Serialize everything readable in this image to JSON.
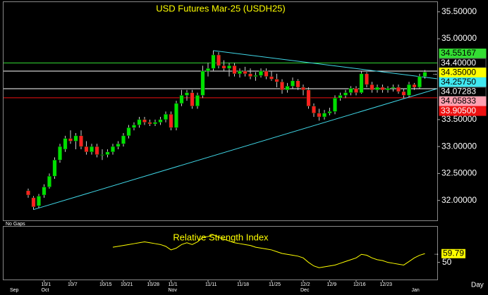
{
  "chart_data": [
    {
      "type": "candlestick",
      "title": "USD Futures Mar-25 (USDH25)",
      "gap_mode": "No Gaps",
      "period": "Day",
      "categories": [
        null,
        null,
        null,
        "10/1",
        null,
        null,
        null,
        null,
        "10/7",
        null,
        null,
        null,
        null,
        null,
        "10/15",
        null,
        null,
        null,
        "10/21",
        null,
        null,
        null,
        null,
        "10/28",
        null,
        null,
        null,
        "11/1",
        null,
        null,
        null,
        null,
        null,
        null,
        "11/11",
        null,
        null,
        null,
        null,
        null,
        "11/18",
        null,
        null,
        null,
        null,
        null,
        "11/25",
        null,
        null,
        null,
        null,
        null,
        "12/2",
        null,
        null,
        null,
        null,
        "12/9",
        null,
        null,
        null,
        null,
        "12/16",
        null,
        null,
        null,
        null,
        "12/23",
        null,
        null,
        null,
        null,
        null,
        null,
        null,
        null
      ],
      "months": [
        "Sep",
        null,
        null,
        "Oct",
        null,
        null,
        null,
        null,
        null,
        null,
        null,
        null,
        null,
        null,
        null,
        null,
        null,
        null,
        null,
        null,
        null,
        null,
        null,
        null,
        null,
        null,
        null,
        "Nov",
        null,
        null,
        null,
        null,
        null,
        null,
        null,
        null,
        null,
        null,
        null,
        null,
        null,
        null,
        null,
        null,
        null,
        null,
        null,
        null,
        null,
        null,
        null,
        null,
        "Dec",
        null,
        null,
        null,
        null,
        null,
        null,
        null,
        null,
        null,
        null,
        null,
        null,
        null,
        null,
        null,
        null,
        null,
        null,
        null,
        null,
        "Jan",
        null,
        null
      ],
      "open": [
        32.18,
        32.05,
        31.9,
        32.1,
        32.25,
        32.45,
        32.75,
        32.95,
        33.15,
        33.1,
        33.2,
        33.0,
        32.9,
        33.0,
        32.85,
        32.85,
        32.9,
        33.0,
        33.05,
        33.2,
        33.35,
        33.4,
        33.5,
        33.45,
        33.42,
        33.45,
        33.5,
        33.6,
        33.35,
        33.8,
        33.95,
        34.0,
        33.75,
        33.95,
        34.4,
        34.45,
        34.7,
        34.5,
        34.45,
        34.5,
        34.35,
        34.4,
        34.35,
        34.3,
        34.32,
        34.4,
        34.3,
        34.25,
        34.2,
        34.05,
        34.12,
        34.22,
        34.1,
        34.05,
        33.75,
        33.62,
        33.55,
        33.62,
        33.65,
        33.9,
        33.95,
        34.0,
        34.08,
        34.0,
        34.35,
        34.15,
        34.05,
        34.1,
        34.05,
        34.08,
        34.1,
        34.02,
        33.95,
        34.15,
        34.1,
        34.3
      ],
      "high": [
        32.22,
        32.08,
        32.12,
        32.3,
        32.5,
        32.8,
        33.05,
        33.2,
        33.3,
        33.25,
        33.3,
        33.1,
        33.05,
        33.05,
        32.95,
        32.95,
        33.05,
        33.1,
        33.25,
        33.4,
        33.45,
        33.55,
        33.55,
        33.5,
        33.5,
        33.55,
        33.65,
        33.65,
        33.85,
        34.05,
        34.05,
        34.05,
        34.0,
        34.5,
        34.55,
        34.78,
        34.75,
        34.6,
        34.55,
        34.55,
        34.45,
        34.48,
        34.45,
        34.38,
        34.45,
        34.45,
        34.4,
        34.35,
        34.25,
        34.18,
        34.28,
        34.25,
        34.15,
        34.1,
        33.8,
        33.7,
        33.68,
        33.72,
        33.95,
        34.0,
        34.05,
        34.12,
        34.12,
        34.4,
        34.38,
        34.2,
        34.15,
        34.15,
        34.12,
        34.15,
        34.15,
        34.08,
        34.2,
        34.18,
        34.35,
        34.42
      ],
      "low": [
        32.05,
        31.83,
        31.86,
        32.05,
        32.22,
        32.4,
        32.7,
        32.9,
        33.05,
        32.95,
        32.95,
        32.85,
        32.85,
        32.8,
        32.75,
        32.8,
        32.85,
        32.95,
        33.0,
        33.15,
        33.3,
        33.35,
        33.4,
        33.38,
        33.38,
        33.4,
        33.45,
        33.3,
        33.3,
        33.75,
        33.85,
        33.7,
        33.7,
        33.9,
        34.3,
        34.4,
        34.45,
        34.4,
        34.3,
        34.3,
        34.28,
        34.3,
        34.25,
        34.22,
        34.28,
        34.25,
        34.22,
        34.1,
        33.98,
        34.0,
        34.08,
        34.05,
        33.95,
        33.7,
        33.55,
        33.48,
        33.5,
        33.58,
        33.6,
        33.85,
        33.9,
        33.95,
        33.95,
        33.98,
        34.1,
        34.0,
        34.0,
        34.0,
        34.0,
        34.02,
        33.98,
        33.9,
        33.92,
        34.05,
        34.08,
        34.26
      ],
      "close": [
        32.1,
        31.88,
        32.08,
        32.25,
        32.45,
        32.75,
        33.0,
        33.15,
        33.1,
        33.2,
        33.0,
        32.9,
        33.0,
        32.85,
        32.85,
        32.9,
        33.0,
        33.05,
        33.2,
        33.35,
        33.4,
        33.5,
        33.45,
        33.42,
        33.45,
        33.5,
        33.6,
        33.35,
        33.8,
        33.95,
        34.0,
        33.75,
        33.95,
        34.4,
        34.45,
        34.7,
        34.5,
        34.45,
        34.5,
        34.35,
        34.4,
        34.35,
        34.3,
        34.32,
        34.4,
        34.3,
        34.25,
        34.2,
        34.05,
        34.12,
        34.22,
        34.1,
        34.05,
        33.75,
        33.62,
        33.55,
        33.62,
        33.65,
        33.9,
        33.95,
        34.0,
        34.08,
        34.0,
        34.35,
        34.15,
        34.05,
        34.1,
        34.05,
        34.08,
        34.1,
        34.02,
        33.95,
        34.15,
        34.1,
        34.3,
        34.38
      ],
      "up_color": "#00e000",
      "down_color": "#ff2020",
      "ylim": [
        31.63,
        35.68
      ],
      "yticks": [
        {
          "value": 32.0,
          "label": "32.00000"
        },
        {
          "value": 32.5,
          "label": "32.50000"
        },
        {
          "value": 33.0,
          "label": "33.00000"
        },
        {
          "value": 33.5,
          "label": "33.50000"
        },
        {
          "value": 35.0,
          "label": "35.00000"
        },
        {
          "value": 35.5,
          "label": "35.50000"
        }
      ],
      "trendlines": [
        {
          "color": "#40d8e8",
          "x": [
            1,
            77.3
          ],
          "y": [
            31.83,
            34.07283
          ]
        },
        {
          "color": "#40d8e8",
          "x": [
            35,
            77.3
          ],
          "y": [
            34.78,
            34.2575
          ]
        }
      ],
      "levels": [
        {
          "value": 34.55167,
          "label": "34.55167",
          "color": "#33dd33",
          "label_color": "#000000",
          "line": true
        },
        {
          "value": 34.4,
          "label": "34.40000",
          "color": "#000000",
          "label_color": "#ffffff",
          "line": true
        },
        {
          "value": 34.35,
          "label": "34.35000",
          "color": "#ffff00",
          "label_color": "#000000",
          "line": false
        },
        {
          "value": 34.2575,
          "label": "34.25750",
          "color": "#40e8f0",
          "label_color": "#000000",
          "line": false
        },
        {
          "value": 34.07283,
          "label": "34.07283",
          "color": "#000000",
          "label_color": "#ffffff",
          "line": true
        },
        {
          "value": 34.05833,
          "label": "34.05833",
          "color": "#ffa0b0",
          "label_color": "#000000",
          "line": false
        },
        {
          "value": 33.905,
          "label": "33.90500",
          "color": "#ee1111",
          "label_color": "#ffffff",
          "line": true
        }
      ]
    },
    {
      "type": "line",
      "title": "Relative Strength Index",
      "color": "#ffff00",
      "values": [
        null,
        null,
        null,
        null,
        null,
        null,
        null,
        null,
        null,
        null,
        null,
        null,
        null,
        null,
        null,
        null,
        67,
        68,
        69,
        70,
        71,
        72,
        73,
        72,
        71,
        70,
        68,
        64,
        66,
        70,
        72,
        70,
        73,
        78,
        79,
        81,
        78,
        76,
        74,
        72,
        71,
        70,
        69,
        67,
        66,
        65,
        64,
        62,
        60,
        59,
        58,
        57,
        55,
        50,
        46,
        44,
        45,
        46,
        47,
        49,
        51,
        53,
        55,
        59,
        58,
        55,
        53,
        52,
        50,
        49,
        48,
        47,
        51,
        55,
        58,
        59.79
      ],
      "ylim": [
        30,
        90
      ],
      "yticks": [
        50
      ]
    }
  ]
}
